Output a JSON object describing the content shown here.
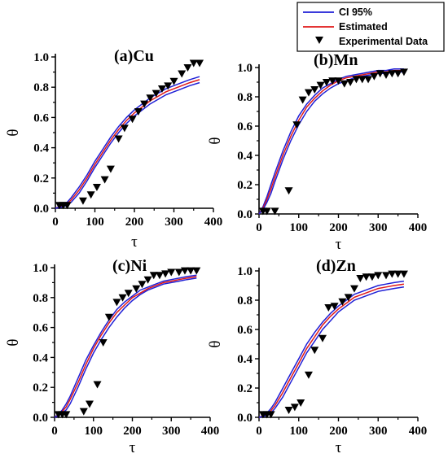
{
  "legend": {
    "items": [
      {
        "label": "CI 95%",
        "color": "#1f1fd6",
        "kind": "line"
      },
      {
        "label": "Estimated",
        "color": "#e01818",
        "kind": "line"
      },
      {
        "label": "Experimental Data",
        "color": "#000000",
        "kind": "marker"
      }
    ]
  },
  "chart_data": [
    {
      "type": "line",
      "title": "(a)Cu",
      "xlabel": "τ",
      "ylabel": "θ",
      "xlim": [
        0,
        400
      ],
      "ylim": [
        0,
        1.0
      ],
      "xticks": [
        "0",
        "100",
        "200",
        "300",
        "400"
      ],
      "yticks": [
        "0.0",
        "0.2",
        "0.4",
        "0.6",
        "0.8",
        "1.0"
      ],
      "series": [
        {
          "name": "CI 95%",
          "color": "#1f1fd6",
          "style": "line",
          "x": [
            0,
            10,
            20,
            30,
            40,
            60,
            80,
            100,
            120,
            140,
            160,
            180,
            200,
            220,
            240,
            260,
            280,
            300,
            320,
            340,
            365
          ],
          "y": [
            0.0,
            0.01,
            0.02,
            0.04,
            0.07,
            0.14,
            0.22,
            0.31,
            0.39,
            0.47,
            0.54,
            0.6,
            0.65,
            0.69,
            0.73,
            0.76,
            0.79,
            0.81,
            0.83,
            0.85,
            0.87
          ]
        },
        {
          "name": "Estimated",
          "color": "#e01818",
          "style": "line",
          "x": [
            0,
            10,
            20,
            30,
            40,
            60,
            80,
            100,
            120,
            140,
            160,
            180,
            200,
            220,
            240,
            260,
            280,
            300,
            320,
            340,
            365
          ],
          "y": [
            0.0,
            0.008,
            0.015,
            0.03,
            0.055,
            0.12,
            0.2,
            0.29,
            0.37,
            0.45,
            0.52,
            0.58,
            0.63,
            0.67,
            0.71,
            0.74,
            0.77,
            0.79,
            0.81,
            0.83,
            0.85
          ]
        },
        {
          "name": "CI 95%",
          "color": "#1f1fd6",
          "style": "line",
          "x": [
            0,
            10,
            20,
            30,
            40,
            60,
            80,
            100,
            120,
            140,
            160,
            180,
            200,
            220,
            240,
            260,
            280,
            300,
            320,
            340,
            365
          ],
          "y": [
            0.0,
            0.005,
            0.01,
            0.02,
            0.04,
            0.1,
            0.18,
            0.27,
            0.35,
            0.43,
            0.5,
            0.56,
            0.61,
            0.65,
            0.69,
            0.72,
            0.75,
            0.77,
            0.79,
            0.81,
            0.83
          ]
        },
        {
          "name": "Experimental Data",
          "color": "#000000",
          "style": "marker",
          "x": [
            10,
            20,
            30,
            70,
            90,
            105,
            125,
            140,
            160,
            175,
            195,
            210,
            225,
            240,
            255,
            270,
            285,
            300,
            320,
            335,
            350,
            365
          ],
          "y": [
            0.02,
            0.02,
            0.02,
            0.05,
            0.09,
            0.14,
            0.19,
            0.26,
            0.46,
            0.53,
            0.59,
            0.64,
            0.69,
            0.73,
            0.76,
            0.79,
            0.81,
            0.84,
            0.89,
            0.93,
            0.96,
            0.96
          ]
        }
      ]
    },
    {
      "type": "line",
      "title": "(b)Mn",
      "xlabel": "τ",
      "ylabel": "θ",
      "xlim": [
        0,
        400
      ],
      "ylim": [
        0,
        1.0
      ],
      "xticks": [
        "0",
        "100",
        "200",
        "300",
        "400"
      ],
      "yticks": [
        "0.0",
        "0.2",
        "0.4",
        "0.6",
        "0.8",
        "1.0"
      ],
      "series": [
        {
          "name": "CI 95%",
          "color": "#1f1fd6",
          "style": "line",
          "x": [
            0,
            10,
            20,
            30,
            40,
            60,
            80,
            100,
            120,
            140,
            160,
            180,
            200,
            220,
            240,
            260,
            280,
            300,
            320,
            340,
            365
          ],
          "y": [
            0.0,
            0.05,
            0.12,
            0.2,
            0.28,
            0.43,
            0.56,
            0.67,
            0.75,
            0.81,
            0.86,
            0.89,
            0.92,
            0.94,
            0.95,
            0.96,
            0.97,
            0.98,
            0.98,
            0.99,
            0.99
          ]
        },
        {
          "name": "Estimated",
          "color": "#e01818",
          "style": "line",
          "x": [
            0,
            10,
            20,
            30,
            40,
            60,
            80,
            100,
            120,
            140,
            160,
            180,
            200,
            220,
            240,
            260,
            280,
            300,
            320,
            340,
            365
          ],
          "y": [
            0.0,
            0.04,
            0.1,
            0.17,
            0.25,
            0.4,
            0.53,
            0.64,
            0.73,
            0.79,
            0.84,
            0.88,
            0.91,
            0.93,
            0.94,
            0.95,
            0.96,
            0.97,
            0.97,
            0.98,
            0.98
          ]
        },
        {
          "name": "CI 95%",
          "color": "#1f1fd6",
          "style": "line",
          "x": [
            0,
            10,
            20,
            30,
            40,
            60,
            80,
            100,
            120,
            140,
            160,
            180,
            200,
            220,
            240,
            260,
            280,
            300,
            320,
            340,
            365
          ],
          "y": [
            0.0,
            0.03,
            0.08,
            0.14,
            0.22,
            0.37,
            0.5,
            0.61,
            0.7,
            0.77,
            0.82,
            0.86,
            0.89,
            0.91,
            0.93,
            0.94,
            0.95,
            0.96,
            0.96,
            0.97,
            0.97
          ]
        },
        {
          "name": "Experimental Data",
          "color": "#000000",
          "style": "marker",
          "x": [
            10,
            20,
            40,
            75,
            95,
            110,
            125,
            140,
            155,
            170,
            185,
            200,
            215,
            230,
            245,
            260,
            275,
            290,
            305,
            320,
            335,
            350,
            365
          ],
          "y": [
            0.02,
            0.02,
            0.02,
            0.16,
            0.61,
            0.78,
            0.83,
            0.85,
            0.88,
            0.9,
            0.91,
            0.91,
            0.89,
            0.9,
            0.92,
            0.92,
            0.92,
            0.94,
            0.96,
            0.95,
            0.96,
            0.96,
            0.97
          ]
        }
      ]
    },
    {
      "type": "line",
      "title": "(c)Ni",
      "xlabel": "τ",
      "ylabel": "θ",
      "xlim": [
        0,
        400
      ],
      "ylim": [
        0,
        1.0
      ],
      "xticks": [
        "0",
        "100",
        "200",
        "300",
        "400"
      ],
      "yticks": [
        "0.0",
        "0.2",
        "0.4",
        "0.6",
        "0.8",
        "1.0"
      ],
      "series": [
        {
          "name": "CI 95%",
          "color": "#1f1fd6",
          "style": "line",
          "x": [
            0,
            10,
            20,
            30,
            40,
            60,
            80,
            100,
            120,
            140,
            160,
            180,
            200,
            220,
            240,
            260,
            280,
            300,
            320,
            340,
            365
          ],
          "y": [
            0.0,
            0.02,
            0.05,
            0.09,
            0.14,
            0.26,
            0.38,
            0.48,
            0.57,
            0.65,
            0.72,
            0.77,
            0.81,
            0.85,
            0.87,
            0.89,
            0.91,
            0.92,
            0.93,
            0.94,
            0.95
          ]
        },
        {
          "name": "Estimated",
          "color": "#e01818",
          "style": "line",
          "x": [
            0,
            10,
            20,
            30,
            40,
            60,
            80,
            100,
            120,
            140,
            160,
            180,
            200,
            220,
            240,
            260,
            280,
            300,
            320,
            340,
            365
          ],
          "y": [
            0.0,
            0.015,
            0.04,
            0.07,
            0.12,
            0.23,
            0.35,
            0.46,
            0.55,
            0.63,
            0.7,
            0.75,
            0.8,
            0.83,
            0.86,
            0.88,
            0.9,
            0.91,
            0.92,
            0.93,
            0.94
          ]
        },
        {
          "name": "CI 95%",
          "color": "#1f1fd6",
          "style": "line",
          "x": [
            0,
            10,
            20,
            30,
            40,
            60,
            80,
            100,
            120,
            140,
            160,
            180,
            200,
            220,
            240,
            260,
            280,
            300,
            320,
            340,
            365
          ],
          "y": [
            0.0,
            0.01,
            0.03,
            0.05,
            0.09,
            0.2,
            0.32,
            0.43,
            0.52,
            0.6,
            0.67,
            0.73,
            0.78,
            0.82,
            0.85,
            0.87,
            0.89,
            0.9,
            0.91,
            0.92,
            0.93
          ]
        },
        {
          "name": "Experimental Data",
          "color": "#000000",
          "style": "marker",
          "x": [
            10,
            20,
            30,
            75,
            90,
            110,
            125,
            140,
            160,
            175,
            190,
            210,
            225,
            240,
            255,
            270,
            285,
            300,
            320,
            335,
            350,
            365
          ],
          "y": [
            0.02,
            0.02,
            0.02,
            0.04,
            0.09,
            0.22,
            0.5,
            0.67,
            0.77,
            0.8,
            0.83,
            0.86,
            0.89,
            0.92,
            0.95,
            0.95,
            0.96,
            0.97,
            0.97,
            0.98,
            0.98,
            0.98
          ]
        }
      ]
    },
    {
      "type": "line",
      "title": "(d)Zn",
      "xlabel": "τ",
      "ylabel": "θ",
      "xlim": [
        0,
        400
      ],
      "ylim": [
        0,
        1.0
      ],
      "xticks": [
        "0",
        "100",
        "200",
        "300",
        "400"
      ],
      "yticks": [
        "0.0",
        "0.2",
        "0.4",
        "0.6",
        "0.8",
        "1.0"
      ],
      "series": [
        {
          "name": "CI 95%",
          "color": "#1f1fd6",
          "style": "line",
          "x": [
            0,
            10,
            20,
            30,
            40,
            60,
            80,
            100,
            120,
            140,
            160,
            180,
            200,
            220,
            240,
            260,
            280,
            300,
            320,
            340,
            365
          ],
          "y": [
            0.0,
            0.01,
            0.03,
            0.06,
            0.1,
            0.2,
            0.3,
            0.4,
            0.5,
            0.58,
            0.65,
            0.71,
            0.76,
            0.8,
            0.84,
            0.86,
            0.88,
            0.9,
            0.91,
            0.92,
            0.93
          ]
        },
        {
          "name": "Estimated",
          "color": "#e01818",
          "style": "line",
          "x": [
            0,
            10,
            20,
            30,
            40,
            60,
            80,
            100,
            120,
            140,
            160,
            180,
            200,
            220,
            240,
            260,
            280,
            300,
            320,
            340,
            365
          ],
          "y": [
            0.0,
            0.008,
            0.02,
            0.045,
            0.08,
            0.17,
            0.27,
            0.37,
            0.47,
            0.55,
            0.63,
            0.69,
            0.74,
            0.78,
            0.82,
            0.84,
            0.86,
            0.88,
            0.89,
            0.9,
            0.91
          ]
        },
        {
          "name": "CI 95%",
          "color": "#1f1fd6",
          "style": "line",
          "x": [
            0,
            10,
            20,
            30,
            40,
            60,
            80,
            100,
            120,
            140,
            160,
            180,
            200,
            220,
            240,
            260,
            280,
            300,
            320,
            340,
            365
          ],
          "y": [
            0.0,
            0.005,
            0.015,
            0.03,
            0.06,
            0.14,
            0.24,
            0.34,
            0.44,
            0.52,
            0.6,
            0.66,
            0.72,
            0.76,
            0.8,
            0.82,
            0.84,
            0.86,
            0.87,
            0.88,
            0.89
          ]
        },
        {
          "name": "Experimental Data",
          "color": "#000000",
          "style": "marker",
          "x": [
            10,
            20,
            30,
            75,
            90,
            105,
            125,
            140,
            160,
            175,
            190,
            210,
            225,
            240,
            255,
            270,
            285,
            300,
            320,
            335,
            350,
            365
          ],
          "y": [
            0.02,
            0.02,
            0.02,
            0.05,
            0.07,
            0.1,
            0.29,
            0.46,
            0.54,
            0.75,
            0.76,
            0.79,
            0.82,
            0.88,
            0.95,
            0.96,
            0.96,
            0.97,
            0.97,
            0.98,
            0.98,
            0.98
          ]
        }
      ]
    }
  ]
}
